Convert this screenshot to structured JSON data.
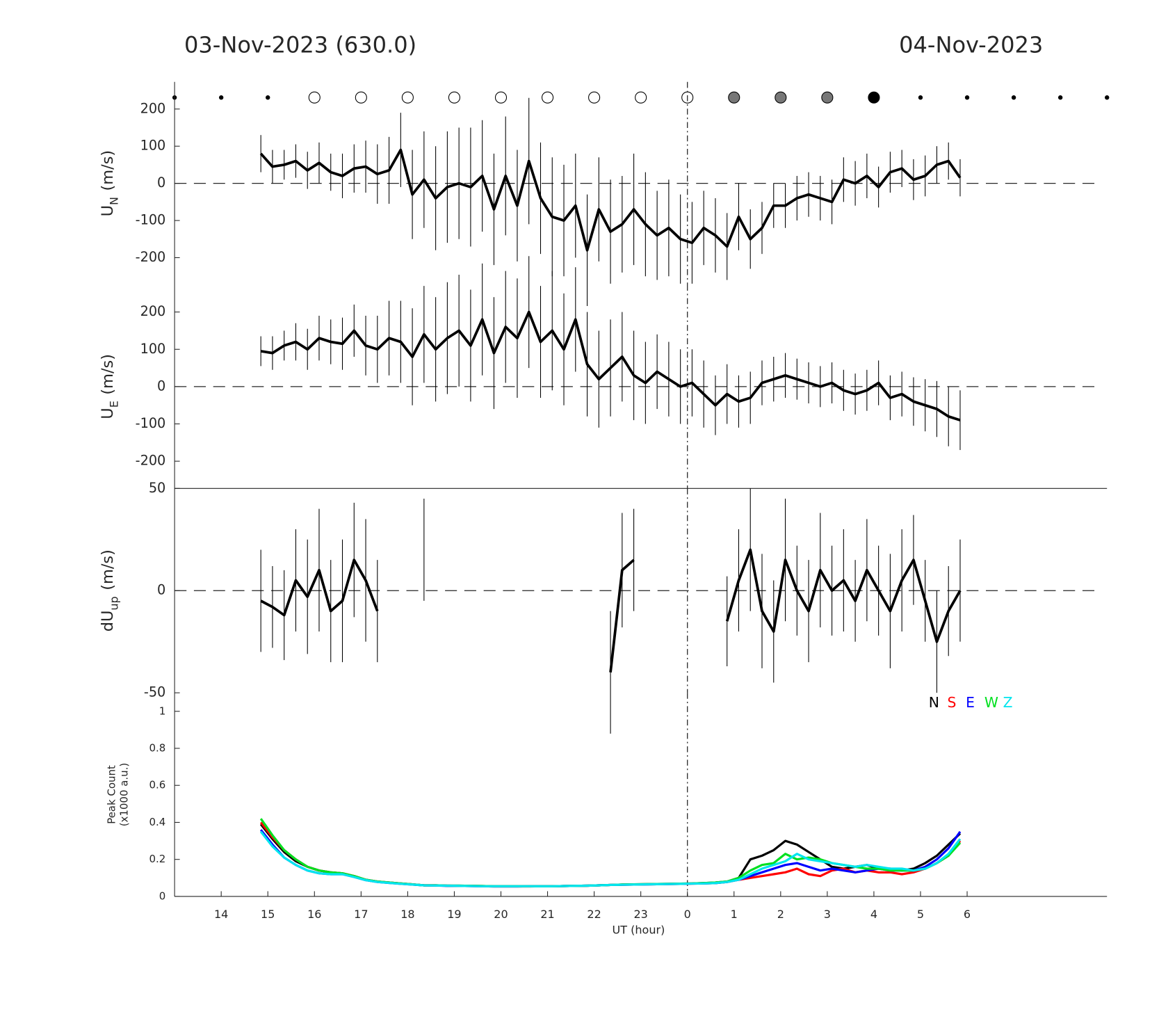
{
  "header": {
    "left_title": "03-Nov-2023 (630.0)",
    "right_title": "04-Nov-2023"
  },
  "chart_data": [
    {
      "type": "errorbar-line",
      "ylabel": {
        "text": "U",
        "sub": "N",
        "unit": "(m/s)"
      },
      "xlim": [
        13,
        33
      ],
      "ylim": [
        -273,
        273
      ],
      "yticks": [
        -200,
        -100,
        0,
        100,
        200
      ],
      "hline": 0,
      "vline": 24,
      "x": [
        14.85,
        15.1,
        15.35,
        15.6,
        15.85,
        16.1,
        16.35,
        16.6,
        16.85,
        17.1,
        17.35,
        17.6,
        17.85,
        18.1,
        18.35,
        18.6,
        18.85,
        19.1,
        19.35,
        19.6,
        19.85,
        20.1,
        20.35,
        20.6,
        20.85,
        21.1,
        21.35,
        21.6,
        21.85,
        22.1,
        22.35,
        22.6,
        22.85,
        23.1,
        23.35,
        23.6,
        23.85,
        24.1,
        24.35,
        24.6,
        24.85,
        25.1,
        25.35,
        25.6,
        25.85,
        26.1,
        26.35,
        26.6,
        26.85,
        27.1,
        27.35,
        27.6,
        27.85,
        28.1,
        28.35,
        28.6,
        28.85,
        29.1,
        29.35,
        29.6,
        29.85
      ],
      "series": [
        {
          "color": "#000000",
          "values": [
            80,
            45,
            50,
            60,
            35,
            55,
            30,
            20,
            40,
            45,
            25,
            35,
            90,
            -30,
            10,
            -40,
            -10,
            0,
            -10,
            20,
            -70,
            20,
            -60,
            60,
            -40,
            -90,
            -100,
            -60,
            -180,
            -70,
            -130,
            -110,
            -70,
            -110,
            -140,
            -120,
            -150,
            -160,
            -120,
            -140,
            -170,
            -90,
            -150,
            -120,
            -60,
            -60,
            -40,
            -30,
            -40,
            -50,
            10,
            0,
            20,
            -10,
            30,
            40,
            10,
            20,
            50,
            60,
            15
          ],
          "errors": [
            50,
            45,
            40,
            45,
            50,
            55,
            50,
            60,
            65,
            70,
            80,
            90,
            100,
            120,
            130,
            140,
            150,
            150,
            160,
            150,
            150,
            160,
            150,
            170,
            150,
            160,
            150,
            140,
            150,
            140,
            140,
            130,
            150,
            140,
            120,
            130,
            120,
            110,
            100,
            100,
            90,
            90,
            80,
            70,
            60,
            60,
            60,
            60,
            60,
            60,
            60,
            60,
            60,
            55,
            55,
            50,
            55,
            55,
            50,
            50,
            50
          ]
        }
      ]
    },
    {
      "type": "errorbar-line",
      "ylabel": {
        "text": "U",
        "sub": "E",
        "unit": "(m/s)"
      },
      "xlim": [
        13,
        33
      ],
      "ylim": [
        -273,
        273
      ],
      "yticks": [
        -200,
        -100,
        0,
        100,
        200
      ],
      "hline": 0,
      "vline": 24,
      "x": [
        14.85,
        15.1,
        15.35,
        15.6,
        15.85,
        16.1,
        16.35,
        16.6,
        16.85,
        17.1,
        17.35,
        17.6,
        17.85,
        18.1,
        18.35,
        18.6,
        18.85,
        19.1,
        19.35,
        19.6,
        19.85,
        20.1,
        20.35,
        20.6,
        20.85,
        21.1,
        21.35,
        21.6,
        21.85,
        22.1,
        22.35,
        22.6,
        22.85,
        23.1,
        23.35,
        23.6,
        23.85,
        24.1,
        24.35,
        24.6,
        24.85,
        25.1,
        25.35,
        25.6,
        25.85,
        26.1,
        26.35,
        26.6,
        26.85,
        27.1,
        27.35,
        27.6,
        27.85,
        28.1,
        28.35,
        28.6,
        28.85,
        29.1,
        29.35,
        29.6,
        29.85
      ],
      "series": [
        {
          "color": "#000000",
          "values": [
            95,
            90,
            110,
            120,
            100,
            130,
            120,
            115,
            150,
            110,
            100,
            130,
            120,
            80,
            140,
            100,
            130,
            150,
            110,
            180,
            90,
            160,
            130,
            200,
            120,
            150,
            100,
            180,
            60,
            20,
            50,
            80,
            30,
            10,
            40,
            20,
            0,
            10,
            -20,
            -50,
            -20,
            -40,
            -30,
            10,
            20,
            30,
            20,
            10,
            0,
            10,
            -10,
            -20,
            -10,
            10,
            -30,
            -20,
            -40,
            -50,
            -60,
            -80,
            -90
          ],
          "errors": [
            40,
            45,
            40,
            50,
            55,
            60,
            60,
            70,
            70,
            80,
            90,
            100,
            110,
            130,
            130,
            140,
            150,
            150,
            150,
            150,
            150,
            150,
            160,
            150,
            150,
            160,
            150,
            140,
            140,
            130,
            130,
            120,
            120,
            110,
            100,
            100,
            100,
            90,
            90,
            80,
            80,
            70,
            70,
            60,
            60,
            60,
            55,
            55,
            55,
            55,
            55,
            55,
            55,
            60,
            60,
            60,
            65,
            70,
            75,
            80,
            80
          ]
        }
      ]
    },
    {
      "type": "errorbar-line",
      "ylabel": {
        "text": "dU",
        "sub": "up",
        "unit": "(m/s)"
      },
      "xlim": [
        13,
        33
      ],
      "ylim": [
        -50,
        50
      ],
      "yticks": [
        -50,
        0,
        50
      ],
      "hline": 0,
      "vline": 24,
      "x": [
        14.85,
        15.1,
        15.35,
        15.6,
        15.85,
        16.1,
        16.35,
        16.6,
        16.85,
        17.1,
        17.35,
        17.6,
        17.85,
        18.1,
        18.35,
        18.6,
        18.85,
        19.1,
        19.35,
        19.6,
        19.85,
        20.1,
        20.35,
        20.6,
        20.85,
        21.1,
        21.35,
        21.6,
        21.85,
        22.1,
        22.35,
        22.6,
        22.85,
        23.1,
        23.35,
        23.6,
        23.85,
        24.1,
        24.35,
        24.6,
        24.85,
        25.1,
        25.35,
        25.6,
        25.85,
        26.1,
        26.35,
        26.6,
        26.85,
        27.1,
        27.35,
        27.6,
        27.85,
        28.1,
        28.35,
        28.6,
        28.85,
        29.1,
        29.35,
        29.6,
        29.85
      ],
      "series": [
        {
          "color": "#000000",
          "values": [
            -5,
            -8,
            -12,
            5,
            -3,
            10,
            -10,
            -5,
            15,
            5,
            -10,
            null,
            null,
            null,
            20,
            null,
            null,
            null,
            null,
            null,
            null,
            null,
            null,
            null,
            null,
            null,
            null,
            null,
            null,
            null,
            -40,
            10,
            15,
            null,
            null,
            null,
            null,
            null,
            null,
            null,
            -15,
            5,
            20,
            -10,
            -20,
            15,
            0,
            -10,
            10,
            0,
            5,
            -5,
            10,
            0,
            -10,
            5,
            15,
            -5,
            -25,
            -10,
            0
          ],
          "errors": [
            25,
            20,
            22,
            25,
            28,
            30,
            25,
            30,
            28,
            30,
            25,
            null,
            null,
            null,
            25,
            null,
            null,
            null,
            null,
            null,
            null,
            null,
            null,
            null,
            null,
            null,
            null,
            null,
            null,
            null,
            30,
            28,
            25,
            null,
            null,
            null,
            null,
            null,
            null,
            null,
            22,
            25,
            30,
            28,
            25,
            30,
            22,
            25,
            28,
            22,
            25,
            20,
            25,
            22,
            28,
            25,
            22,
            20,
            25,
            22,
            25
          ]
        }
      ]
    },
    {
      "type": "line",
      "ylabel": [
        "Peak Count",
        "(x1000 a.u.)"
      ],
      "xlabel": "UT (hour)",
      "xlim": [
        13,
        33
      ],
      "ylim": [
        0,
        1.1
      ],
      "yticks": [
        0,
        0.2,
        0.4,
        0.6,
        0.8,
        1
      ],
      "vline": 24,
      "legend": "upper right",
      "xticks": [
        14,
        15,
        16,
        17,
        18,
        19,
        20,
        21,
        22,
        23,
        {
          "value": 24,
          "label": "0"
        },
        {
          "value": 25,
          "label": "1"
        },
        {
          "value": 26,
          "label": "2"
        },
        {
          "value": 27,
          "label": "3"
        },
        {
          "value": 28,
          "label": "4"
        },
        {
          "value": 29,
          "label": "5"
        },
        {
          "value": 30,
          "label": "6"
        }
      ],
      "x": [
        14.85,
        15.1,
        15.35,
        15.6,
        15.85,
        16.1,
        16.35,
        16.6,
        16.85,
        17.1,
        17.35,
        17.6,
        17.85,
        18.1,
        18.35,
        18.6,
        18.85,
        19.1,
        19.35,
        19.6,
        19.85,
        20.1,
        20.35,
        20.6,
        20.85,
        21.1,
        21.35,
        21.6,
        21.85,
        22.1,
        22.35,
        22.6,
        22.85,
        23.1,
        23.35,
        23.6,
        23.85,
        24.1,
        24.35,
        24.6,
        24.85,
        25.1,
        25.35,
        25.6,
        25.85,
        26.1,
        26.35,
        26.6,
        26.85,
        27.1,
        27.35,
        27.6,
        27.85,
        28.1,
        28.35,
        28.6,
        28.85,
        29.1,
        29.35,
        29.6,
        29.85
      ],
      "series": [
        {
          "name": "N",
          "color": "#000000",
          "values": [
            0.39,
            0.31,
            0.24,
            0.19,
            0.16,
            0.14,
            0.13,
            0.125,
            0.11,
            0.09,
            0.08,
            0.075,
            0.07,
            0.065,
            0.06,
            0.06,
            0.058,
            0.058,
            0.057,
            0.056,
            0.055,
            0.055,
            0.055,
            0.055,
            0.055,
            0.055,
            0.056,
            0.057,
            0.058,
            0.06,
            0.062,
            0.064,
            0.065,
            0.066,
            0.067,
            0.068,
            0.069,
            0.07,
            0.072,
            0.075,
            0.08,
            0.1,
            0.2,
            0.22,
            0.25,
            0.3,
            0.28,
            0.24,
            0.2,
            0.16,
            0.15,
            0.16,
            0.17,
            0.15,
            0.15,
            0.14,
            0.15,
            0.18,
            0.22,
            0.28,
            0.34
          ]
        },
        {
          "name": "S",
          "color": "#ff0000",
          "values": [
            0.4,
            0.32,
            0.25,
            0.2,
            0.16,
            0.14,
            0.13,
            0.125,
            0.11,
            0.09,
            0.08,
            0.075,
            0.07,
            0.065,
            0.06,
            0.06,
            0.058,
            0.057,
            0.056,
            0.055,
            0.054,
            0.054,
            0.054,
            0.054,
            0.055,
            0.055,
            0.056,
            0.057,
            0.058,
            0.06,
            0.062,
            0.063,
            0.064,
            0.065,
            0.066,
            0.067,
            0.068,
            0.069,
            0.07,
            0.072,
            0.078,
            0.09,
            0.1,
            0.11,
            0.12,
            0.13,
            0.15,
            0.12,
            0.11,
            0.14,
            0.15,
            0.13,
            0.14,
            0.13,
            0.13,
            0.12,
            0.13,
            0.15,
            0.18,
            0.22,
            0.3
          ]
        },
        {
          "name": "E",
          "color": "#0000ff",
          "values": [
            0.36,
            0.28,
            0.21,
            0.17,
            0.14,
            0.125,
            0.12,
            0.12,
            0.105,
            0.088,
            0.078,
            0.073,
            0.068,
            0.064,
            0.06,
            0.059,
            0.057,
            0.057,
            0.056,
            0.055,
            0.054,
            0.054,
            0.054,
            0.055,
            0.055,
            0.055,
            0.056,
            0.057,
            0.058,
            0.06,
            0.062,
            0.063,
            0.064,
            0.065,
            0.066,
            0.067,
            0.068,
            0.069,
            0.07,
            0.072,
            0.078,
            0.09,
            0.11,
            0.13,
            0.15,
            0.17,
            0.18,
            0.16,
            0.14,
            0.15,
            0.14,
            0.13,
            0.14,
            0.15,
            0.14,
            0.14,
            0.14,
            0.16,
            0.2,
            0.26,
            0.35
          ]
        },
        {
          "name": "W",
          "color": "#00e020",
          "values": [
            0.42,
            0.33,
            0.25,
            0.2,
            0.16,
            0.14,
            0.13,
            0.125,
            0.11,
            0.09,
            0.08,
            0.075,
            0.07,
            0.065,
            0.06,
            0.06,
            0.058,
            0.058,
            0.057,
            0.056,
            0.055,
            0.055,
            0.055,
            0.055,
            0.055,
            0.055,
            0.056,
            0.057,
            0.058,
            0.06,
            0.062,
            0.064,
            0.065,
            0.066,
            0.067,
            0.068,
            0.069,
            0.07,
            0.072,
            0.075,
            0.08,
            0.1,
            0.14,
            0.17,
            0.18,
            0.23,
            0.2,
            0.21,
            0.2,
            0.18,
            0.17,
            0.16,
            0.15,
            0.15,
            0.14,
            0.14,
            0.14,
            0.15,
            0.18,
            0.22,
            0.29
          ]
        },
        {
          "name": "Z",
          "color": "#00e5ee",
          "values": [
            0.35,
            0.27,
            0.21,
            0.17,
            0.14,
            0.125,
            0.12,
            0.12,
            0.105,
            0.088,
            0.078,
            0.073,
            0.068,
            0.064,
            0.06,
            0.059,
            0.058,
            0.057,
            0.056,
            0.055,
            0.055,
            0.055,
            0.055,
            0.055,
            0.055,
            0.055,
            0.056,
            0.057,
            0.058,
            0.06,
            0.062,
            0.063,
            0.064,
            0.065,
            0.066,
            0.067,
            0.068,
            0.069,
            0.07,
            0.072,
            0.078,
            0.09,
            0.12,
            0.15,
            0.17,
            0.19,
            0.23,
            0.2,
            0.19,
            0.18,
            0.17,
            0.16,
            0.17,
            0.16,
            0.15,
            0.15,
            0.14,
            0.15,
            0.18,
            0.23,
            0.31
          ]
        }
      ]
    }
  ]
}
